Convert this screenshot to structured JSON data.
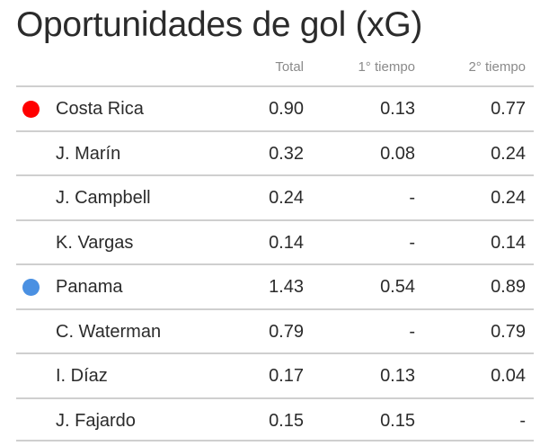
{
  "title": "Oportunidades de gol (xG)",
  "columns": {
    "total": "Total",
    "first_half": "1° tiempo",
    "second_half": "2° tiempo"
  },
  "rows": [
    {
      "name": "Costa Rica",
      "total": "0.90",
      "first_half": "0.13",
      "second_half": "0.77",
      "team": true,
      "color": "#ff0000"
    },
    {
      "name": "J. Marín",
      "total": "0.32",
      "first_half": "0.08",
      "second_half": "0.24",
      "team": false
    },
    {
      "name": "J. Campbell",
      "total": "0.24",
      "first_half": "-",
      "second_half": "0.24",
      "team": false
    },
    {
      "name": "K. Vargas",
      "total": "0.14",
      "first_half": "-",
      "second_half": "0.14",
      "team": false
    },
    {
      "name": "Panama",
      "total": "1.43",
      "first_half": "0.54",
      "second_half": "0.89",
      "team": true,
      "color": "#4a90e2"
    },
    {
      "name": "C. Waterman",
      "total": "0.79",
      "first_half": "-",
      "second_half": "0.79",
      "team": false
    },
    {
      "name": "I. Díaz",
      "total": "0.17",
      "first_half": "0.13",
      "second_half": "0.04",
      "team": false
    },
    {
      "name": "J. Fajardo",
      "total": "0.15",
      "first_half": "0.15",
      "second_half": "-",
      "team": false
    }
  ]
}
